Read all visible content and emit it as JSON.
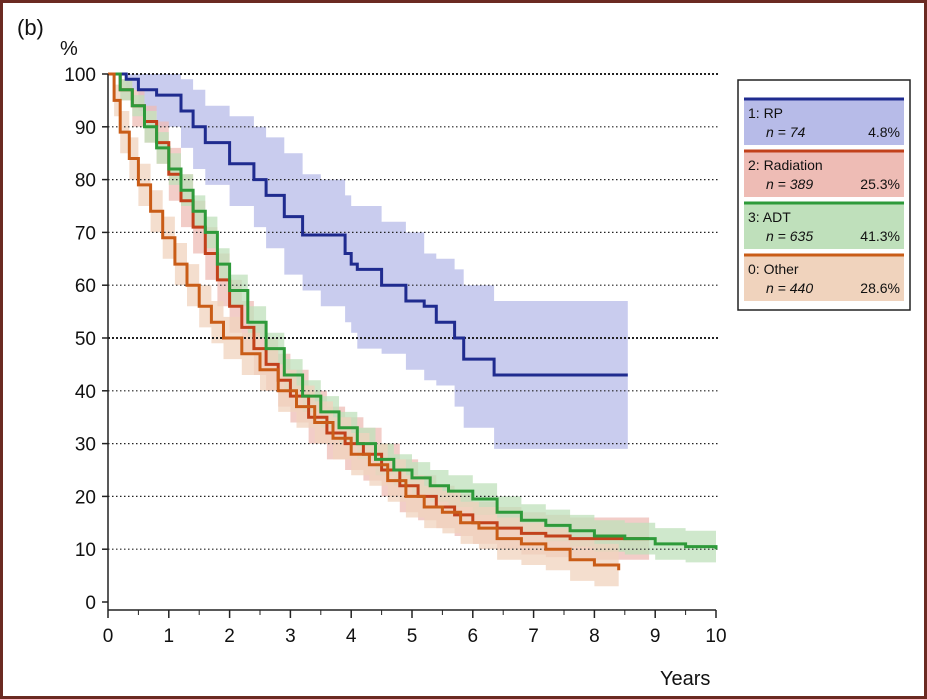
{
  "panel_label": "(b)",
  "chart_data": {
    "type": "line",
    "title": "",
    "ylabel": "%",
    "xlabel": "Years",
    "xlim": [
      0,
      10
    ],
    "ylim": [
      0,
      100
    ],
    "x_ticks": [
      "0",
      "1",
      "2",
      "3",
      "4",
      "5",
      "6",
      "7",
      "8",
      "9",
      "10"
    ],
    "y_ticks": [
      "0",
      "10",
      "20",
      "30",
      "40",
      "50",
      "60",
      "70",
      "80",
      "90",
      "100"
    ],
    "grid": "horizontal-dotted",
    "legend_position": "top-right",
    "series": [
      {
        "id": "rp",
        "code": "1",
        "name": "RP",
        "n_label": "n = 74",
        "pct_label": "4.8%",
        "color": "#1f2b8f",
        "band_color": "#b7bbe8",
        "x": [
          0,
          0.3,
          0.5,
          0.8,
          1.2,
          1.4,
          1.6,
          2.0,
          2.4,
          2.6,
          2.9,
          3.2,
          3.5,
          3.9,
          4.0,
          4.1,
          4.5,
          4.9,
          5.2,
          5.4,
          5.7,
          5.85,
          6.35,
          8.55
        ],
        "values": [
          100,
          99,
          97,
          96,
          93,
          90,
          87,
          83,
          80,
          77,
          73,
          69.5,
          69.5,
          66,
          64,
          63,
          60,
          57,
          56,
          53,
          50,
          46,
          43,
          43
        ],
        "upper": [
          100,
          100,
          100,
          100,
          99,
          97,
          94,
          92,
          90,
          88,
          85,
          81,
          80,
          77,
          75,
          75,
          72,
          70,
          66,
          65,
          63,
          60,
          57,
          57
        ],
        "lower": [
          100,
          97,
          93,
          90,
          86,
          82,
          79,
          75,
          71,
          67,
          62,
          59,
          56,
          53,
          51,
          48,
          47,
          44,
          42,
          41,
          37,
          33,
          29,
          29
        ]
      },
      {
        "id": "radiation",
        "code": "2",
        "name": "Radiation",
        "n_label": "n = 389",
        "pct_label": "25.3%",
        "color": "#c2411b",
        "band_color": "#eebcb5",
        "x": [
          0,
          0.2,
          0.4,
          0.6,
          0.8,
          1.0,
          1.2,
          1.4,
          1.6,
          1.8,
          2.0,
          2.2,
          2.4,
          2.6,
          2.8,
          3.0,
          3.3,
          3.6,
          3.9,
          4.2,
          4.5,
          4.8,
          5.1,
          5.4,
          5.7,
          6.0,
          6.4,
          6.8,
          7.2,
          7.6,
          8.0,
          8.4,
          8.9
        ],
        "values": [
          100,
          97,
          94,
          91,
          87,
          81,
          76,
          71,
          66,
          61,
          56,
          52,
          48,
          45,
          42,
          39,
          35,
          32,
          30,
          28,
          25,
          22,
          20,
          18,
          16.5,
          15,
          14,
          13,
          12.5,
          12,
          12,
          12,
          12
        ],
        "upper": [
          100,
          99,
          97,
          94,
          91,
          86,
          81,
          76,
          71,
          66,
          61,
          57,
          53,
          50,
          47,
          44,
          40,
          37,
          35,
          33,
          30,
          27,
          24,
          22,
          20.5,
          19,
          18,
          17,
          16.5,
          16,
          16,
          16,
          16
        ],
        "lower": [
          100,
          95,
          90,
          87,
          83,
          76,
          71,
          66,
          61,
          56,
          51,
          47,
          43,
          40,
          37,
          34,
          30,
          27,
          25,
          23,
          20,
          17,
          15.5,
          14,
          12.5,
          11,
          10,
          9,
          8.5,
          8,
          8,
          8,
          8
        ]
      },
      {
        "id": "adt",
        "code": "3",
        "name": "ADT",
        "n_label": "n = 635",
        "pct_label": "41.3%",
        "color": "#2e9a3a",
        "band_color": "#bfe0bb",
        "x": [
          0,
          0.2,
          0.4,
          0.6,
          0.8,
          1.0,
          1.2,
          1.4,
          1.6,
          1.8,
          2.0,
          2.3,
          2.6,
          2.9,
          3.2,
          3.5,
          3.8,
          4.1,
          4.4,
          4.7,
          5.0,
          5.3,
          5.6,
          6.0,
          6.4,
          6.8,
          7.2,
          7.6,
          8.0,
          8.5,
          9.0,
          9.5,
          10.0
        ],
        "values": [
          100,
          97,
          94,
          90,
          86,
          82,
          78,
          74,
          70,
          64,
          59,
          53,
          48,
          43,
          39,
          36,
          33,
          30,
          27,
          25,
          23.5,
          22,
          21,
          19.5,
          17,
          15.5,
          14.5,
          13.5,
          12.5,
          12,
          11,
          10.5,
          10
        ],
        "upper": [
          100,
          99,
          96,
          93,
          89,
          85,
          81,
          77,
          73,
          67,
          62,
          56,
          51,
          46,
          42,
          39,
          36,
          33,
          30,
          28,
          26.5,
          25,
          24,
          22.5,
          20,
          18.5,
          17.5,
          16.5,
          15.5,
          15,
          14,
          13.5,
          13
        ],
        "lower": [
          100,
          95,
          92,
          87,
          83,
          79,
          75,
          71,
          67,
          61,
          56,
          50,
          45,
          40,
          36,
          33,
          30,
          27,
          24,
          22,
          20.5,
          19,
          18,
          16.5,
          14,
          12.5,
          11.5,
          10.5,
          9.5,
          9,
          8,
          7.5,
          7
        ]
      },
      {
        "id": "other",
        "code": "0",
        "name": "Other",
        "n_label": "n = 440",
        "pct_label": "28.6%",
        "color": "#c95c17",
        "band_color": "#f0d3bd",
        "x": [
          0,
          0.1,
          0.2,
          0.35,
          0.5,
          0.7,
          0.9,
          1.1,
          1.3,
          1.5,
          1.7,
          1.9,
          2.2,
          2.5,
          2.8,
          3.1,
          3.4,
          3.7,
          4.0,
          4.3,
          4.6,
          4.9,
          5.2,
          5.5,
          5.8,
          6.1,
          6.4,
          6.8,
          7.2,
          7.6,
          8.0,
          8.4
        ],
        "values": [
          100,
          95,
          89,
          84,
          79,
          74,
          69,
          64,
          60,
          56,
          53,
          50,
          47,
          44,
          40,
          37,
          34,
          31,
          28,
          26,
          23,
          20,
          18,
          17,
          15,
          14,
          12,
          11,
          10,
          8,
          7,
          6
        ],
        "upper": [
          100,
          98,
          93,
          88,
          83,
          78,
          73,
          68,
          64,
          60,
          57,
          54,
          51,
          48,
          44,
          41,
          38,
          35,
          32,
          30,
          27,
          24,
          22,
          21,
          19,
          18,
          16,
          15,
          14,
          12,
          11,
          10
        ],
        "lower": [
          100,
          92,
          85,
          80,
          75,
          70,
          65,
          60,
          56,
          52,
          49,
          46,
          43,
          40,
          36,
          33,
          30,
          27,
          24,
          22,
          19,
          16,
          14,
          13,
          11,
          10,
          8,
          7,
          6,
          4,
          3,
          2
        ]
      }
    ]
  }
}
